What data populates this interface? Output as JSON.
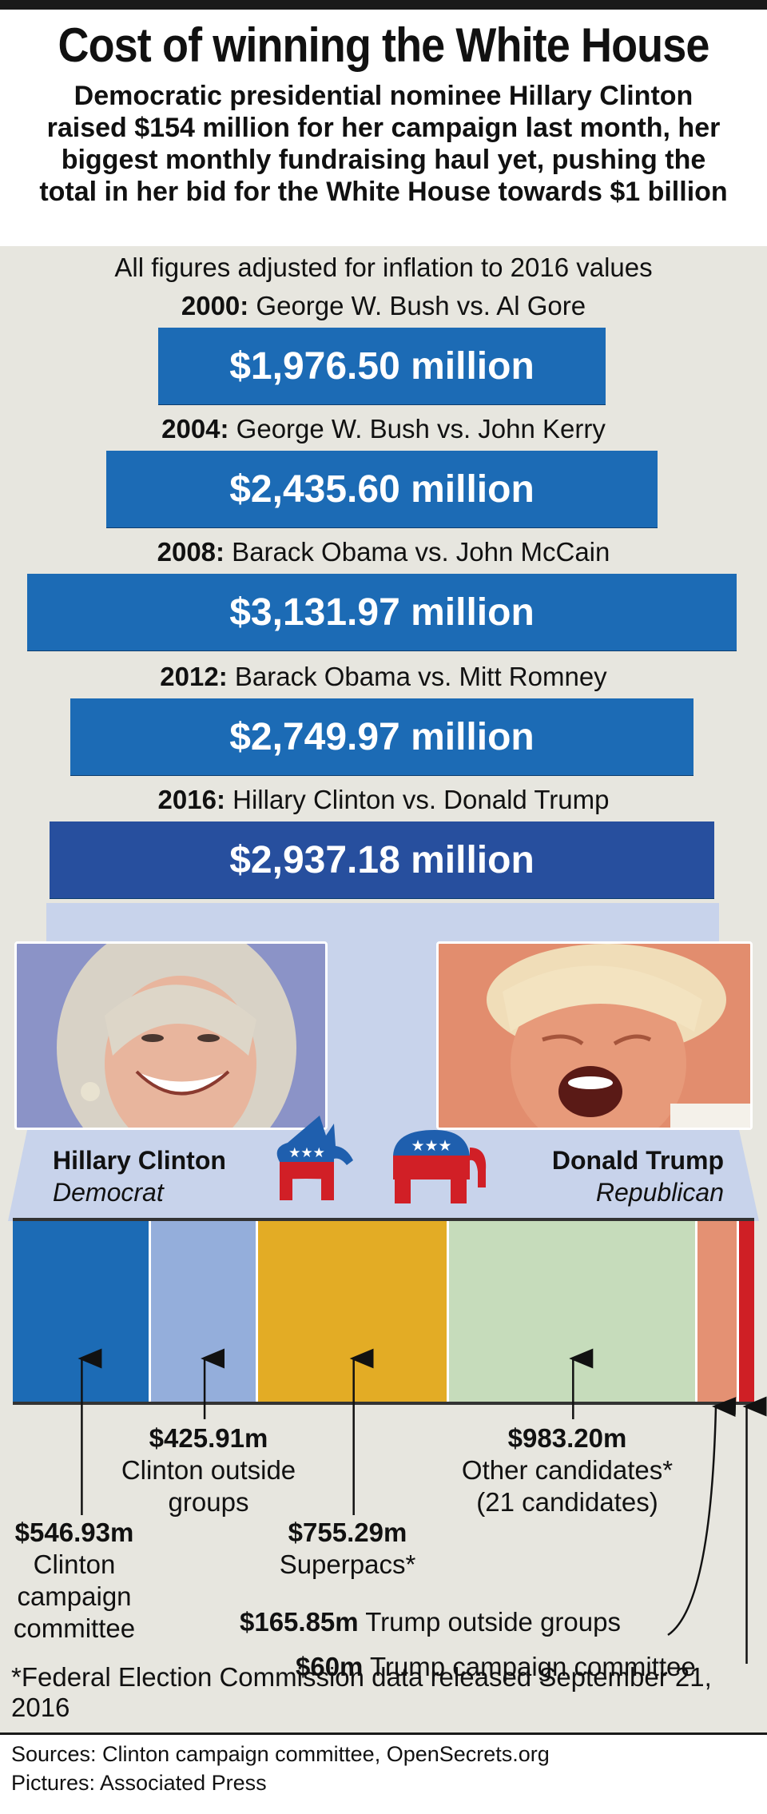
{
  "header": {
    "title": "Cost of winning the White House",
    "subtitle": "Democratic presidential nominee Hillary Clinton raised $154 million for her campaign last month, her biggest monthly fundraising haul yet, pushing the total in her bid for the White House towards $1 billion"
  },
  "inflation_note": "All figures adjusted for inflation to 2016 values",
  "colors": {
    "bar": "#1c6bb5",
    "bar_current": "#274f9e",
    "clinton_campaign": "#1c6bb5",
    "clinton_outside": "#94aedb",
    "superpacs": "#e3ac25",
    "other_candidates": "#c6dcbb",
    "trump_outside": "#e49173",
    "trump_campaign": "#cf1f25",
    "panel": "#e7e6df"
  },
  "chart_data": [
    {
      "type": "bar",
      "units": "million",
      "categories": [
        "2000",
        "2004",
        "2008",
        "2012",
        "2016"
      ],
      "matchups": [
        "George W. Bush vs. Al Gore",
        "George W. Bush vs. John Kerry",
        "Barack Obama vs. John McCain",
        "Barack Obama vs. Mitt Romney",
        "Hillary Clinton vs. Donald Trump"
      ],
      "values": [
        1976.5,
        2435.6,
        3131.97,
        2749.97,
        2937.18
      ],
      "value_labels": [
        "$1,976.50 million",
        "$2,435.60 million",
        "$3,131.97 million",
        "$2,749.97 million",
        "$2,937.18 million"
      ]
    },
    {
      "type": "bar",
      "stacked": true,
      "units": "million",
      "segments": [
        {
          "key": "clinton_campaign",
          "value": 546.93,
          "amount": "$546.93m",
          "label": [
            "Clinton",
            "campaign",
            "committee"
          ]
        },
        {
          "key": "clinton_outside",
          "value": 425.91,
          "amount": "$425.91m",
          "label": [
            "Clinton outside",
            "groups"
          ]
        },
        {
          "key": "superpacs",
          "value": 755.29,
          "amount": "$755.29m",
          "label": [
            "Superpacs*"
          ]
        },
        {
          "key": "other_candidates",
          "value": 983.2,
          "amount": "$983.20m",
          "label": [
            "Other candidates*",
            "(21 candidates)"
          ]
        },
        {
          "key": "trump_outside",
          "value": 165.85,
          "amount": "$165.85m",
          "label": [
            "Trump outside groups"
          ]
        },
        {
          "key": "trump_campaign",
          "value": 60,
          "amount": "$60m",
          "label": [
            "Trump campaign committee"
          ]
        }
      ]
    }
  ],
  "candidates": {
    "left": {
      "name": "Hillary Clinton",
      "party": "Democrat",
      "party_icon": "donkey-icon"
    },
    "right": {
      "name": "Donald Trump",
      "party": "Republican",
      "party_icon": "elephant-icon"
    }
  },
  "footnote": "*Federal Election Commission data released September 21, 2016",
  "sources": "Sources: Clinton campaign committee, OpenSecrets.org",
  "pictures": "Pictures: Associated Press"
}
